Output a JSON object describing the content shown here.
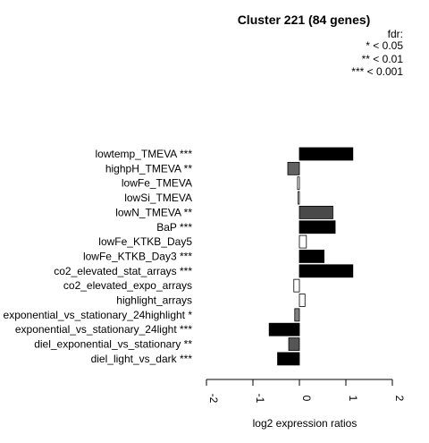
{
  "chart_data": {
    "type": "bar",
    "orientation": "horizontal",
    "title": "Cluster 221 (84 genes)",
    "xlabel": "log2 expression ratios",
    "ylabel": "",
    "xlim": [
      -2,
      2
    ],
    "xticks": [
      "-2",
      "-1",
      "0",
      "1",
      "2"
    ],
    "legend": {
      "title": "fdr:",
      "entries": [
        "* < 0.05",
        "** < 0.01",
        "*** < 0.001"
      ],
      "placement": "top-right"
    },
    "categories": [
      "lowtemp_TMEVA ***",
      "highpH_TMEVA **",
      "lowFe_TMEVA",
      "lowSi_TMEVA",
      "lowN_TMEVA **",
      "BaP ***",
      "lowFe_KTKB_Day5",
      "lowFe_KTKB_Day3 ***",
      "co2_elevated_stat_arrays ***",
      "co2_elevated_expo_arrays",
      "highlight_arrays",
      "exponential_vs_stationary_24highlight *",
      "exponential_vs_stationary_24light ***",
      "diel_exponential_vs_stationary **",
      "diel_light_vs_dark ***"
    ],
    "values": [
      1.15,
      -0.25,
      -0.04,
      -0.03,
      0.72,
      0.77,
      0.15,
      0.53,
      1.15,
      -0.12,
      0.12,
      -0.1,
      -0.65,
      -0.23,
      -0.47
    ],
    "bar_colors": [
      "#000000",
      "#616161",
      "#ffffff",
      "#ffffff",
      "#494949",
      "#000000",
      "#ffffff",
      "#000000",
      "#000000",
      "#ffffff",
      "#ffffff",
      "#808080",
      "#000000",
      "#555555",
      "#000000"
    ]
  }
}
